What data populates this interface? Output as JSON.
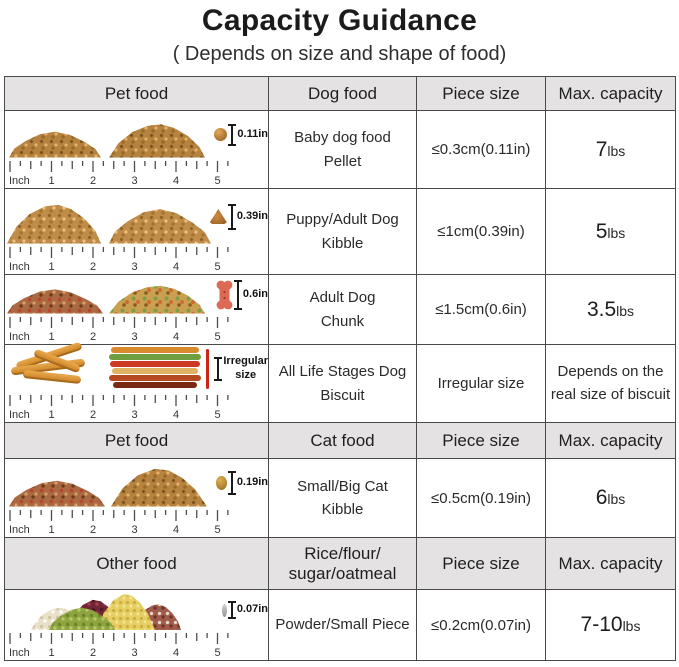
{
  "title": "Capacity Guidance",
  "subtitle": "( Depends on size and shape of food)",
  "colors": {
    "header_bg": "#e4e2e2",
    "table_border": "#4a4a4a",
    "measure_stick_red": "#cc2418"
  },
  "ruler": {
    "label": "Inch",
    "numbers": [
      "1",
      "2",
      "3",
      "4",
      "5"
    ]
  },
  "sections": [
    {
      "headers": [
        "Pet food",
        "Dog food",
        "Piece size",
        "Max. capacity"
      ],
      "rows": [
        {
          "image_label": "0.11in",
          "food": "Baby dog food\nPellet",
          "piece_size": "≤0.3cm(0.11in)",
          "capacity": "7",
          "capacity_unit": "lbs"
        },
        {
          "image_label": "0.39in",
          "food": "Puppy/Adult Dog\nKibble",
          "piece_size": "≤1cm(0.39in)",
          "capacity": "5",
          "capacity_unit": "lbs"
        },
        {
          "image_label": "0.6in",
          "food": "Adult Dog\nChunk",
          "piece_size": "≤1.5cm(0.6in)",
          "capacity": "3.5",
          "capacity_unit": "lbs"
        },
        {
          "image_label": "Irregular\nsize",
          "food": "All Life Stages Dog\nBiscuit",
          "piece_size": "Irregular size",
          "capacity_note": "Depends on the\nreal size of biscuit"
        }
      ]
    },
    {
      "headers": [
        "Pet food",
        "Cat food",
        "Piece size",
        "Max. capacity"
      ],
      "rows": [
        {
          "image_label": "0.19in",
          "food": "Small/Big Cat\nKibble",
          "piece_size": "≤0.5cm(0.19in)",
          "capacity": "6",
          "capacity_unit": "lbs"
        }
      ]
    },
    {
      "headers": [
        "Other food",
        "Rice/flour/\nsugar/oatmeal",
        "Piece size",
        "Max. capacity"
      ],
      "rows": [
        {
          "image_label": "0.07in",
          "food": "Powder/Small Piece",
          "piece_size": "≤0.2cm(0.07in)",
          "capacity": "7-10",
          "capacity_unit": "lbs"
        }
      ]
    }
  ]
}
